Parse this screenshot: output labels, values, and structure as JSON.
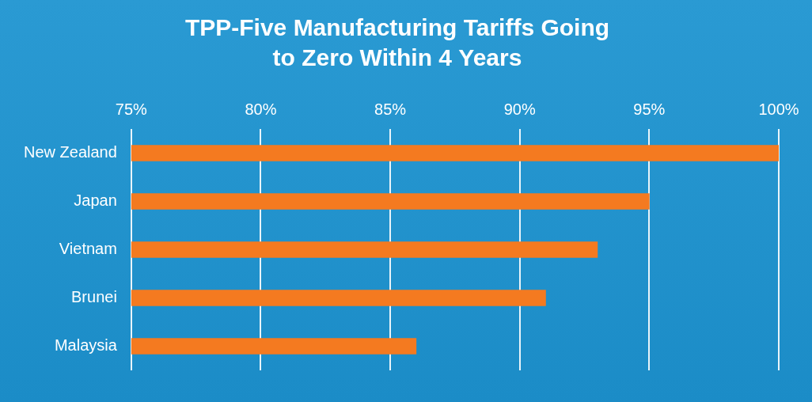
{
  "chart_data": {
    "type": "bar",
    "orientation": "horizontal",
    "title": [
      "TPP-Five Manufacturing Tariffs Going",
      "to Zero Within 4 Years"
    ],
    "categories": [
      "New Zealand",
      "Japan",
      "Vietnam",
      "Brunei",
      "Malaysia"
    ],
    "values": [
      100,
      95,
      93,
      91,
      86
    ],
    "color": "#f47a20",
    "xlim": [
      75,
      100
    ],
    "xticks": [
      {
        "value": 75,
        "label": "75%"
      },
      {
        "value": 80,
        "label": "80%"
      },
      {
        "value": 85,
        "label": "85%"
      },
      {
        "value": 90,
        "label": "90%"
      },
      {
        "value": 95,
        "label": "95%"
      },
      {
        "value": 100,
        "label": "100%"
      }
    ],
    "grid": true
  }
}
